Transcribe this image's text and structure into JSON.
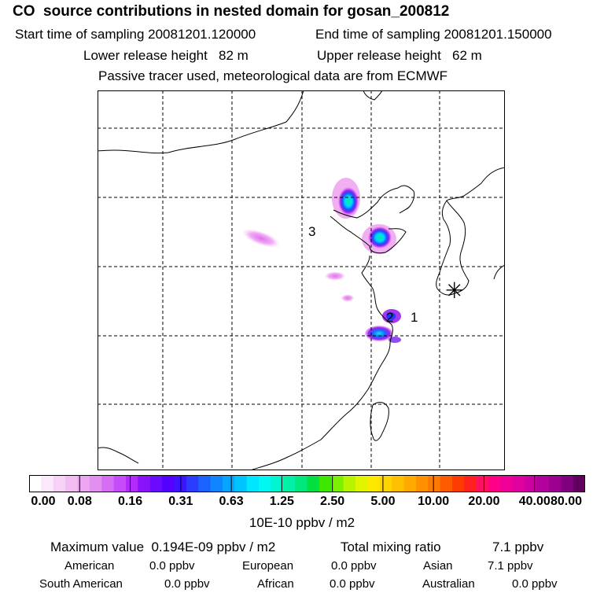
{
  "header": {
    "title": "CO  source contributions in nested domain for gosan_200812",
    "start_label": "Start time of sampling 20081201.120000",
    "end_label": "End time of sampling 20081201.150000",
    "lower_label": "Lower release height   82 m",
    "upper_label": "Upper release height   62 m",
    "note": "Passive tracer used, meteorological data are from ECMWF"
  },
  "map": {
    "markers": [
      "1",
      "2",
      "3"
    ],
    "receptor_symbol": "✳"
  },
  "colorbar": {
    "ticks": [
      "0.00",
      "0.08",
      "0.16",
      "0.31",
      "0.63",
      "1.25",
      "2.50",
      "5.00",
      "10.00",
      "20.00",
      "40.00",
      "80.00"
    ],
    "units": "10E-10 ppbv / m2",
    "colors": [
      "#ffffff",
      "#fbe8fb",
      "#f6d2f6",
      "#f1bcf1",
      "#eca6f0",
      "#e38ff0",
      "#d66ef5",
      "#c54cf8",
      "#b32bfb",
      "#8a12fb",
      "#6a0bff",
      "#5400ff",
      "#3c12ff",
      "#2a3dff",
      "#1b63ff",
      "#0f86ff",
      "#05a6ff",
      "#00c4ff",
      "#00e6ff",
      "#00f8f0",
      "#00f5d0",
      "#00f0a8",
      "#00e87c",
      "#00e040",
      "#3ce800",
      "#7cf000",
      "#b8f400",
      "#e0f400",
      "#ffe800",
      "#ffd400",
      "#ffc000",
      "#ffaa00",
      "#ff9000",
      "#ff7a00",
      "#ff5a00",
      "#ff3a00",
      "#ff2020",
      "#ff1060",
      "#ff0088",
      "#f00098",
      "#e000a0",
      "#cc00a0",
      "#b4009c",
      "#9c0090",
      "#800080",
      "#620060"
    ]
  },
  "stats": {
    "max_label": "Maximum value  0.194E-09 ppbv / m2",
    "total_label": "Total mixing ratio",
    "total_value": "7.1 ppbv",
    "american_label": "American",
    "american_value": "0.0 ppbv",
    "european_label": "European",
    "european_value": "0.0 ppbv",
    "asian_label": "Asian",
    "asian_value": "7.1 ppbv",
    "south_american_label": "South American",
    "south_american_value": "0.0 ppbv",
    "african_label": "African",
    "african_value": "0.0 ppbv",
    "australian_label": "Australian",
    "australian_value": "0.0 ppbv"
  },
  "style": {
    "grid_color": "#000000",
    "coast_color": "#000000"
  }
}
